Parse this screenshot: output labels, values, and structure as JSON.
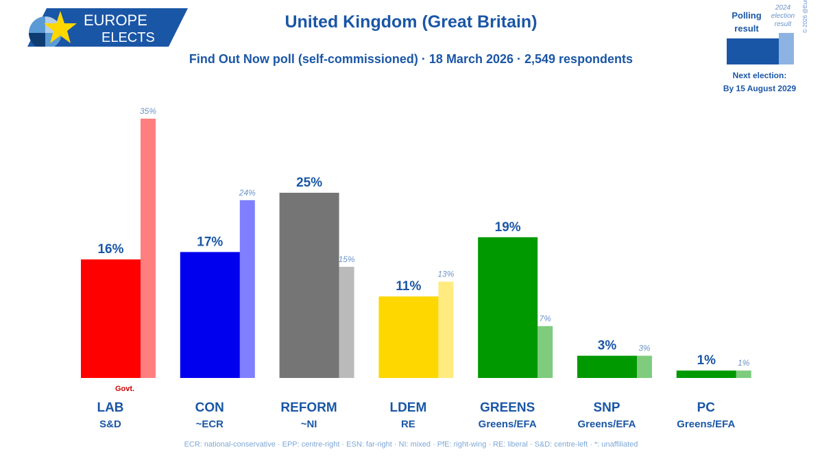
{
  "header": {
    "logo_line1": "EUROPE",
    "logo_line2": "ELECTS",
    "title": "United Kingdom (Great Britain)",
    "subtitle": "Find Out Now poll (self-commissioned) · 18 March 2026 · 2,549 respondents"
  },
  "legend": {
    "polling_label_1": "Polling",
    "polling_label_2": "result",
    "previous_label_1": "2024",
    "previous_label_2": "election",
    "previous_label_3": "result",
    "next_election_label": "Next election:",
    "next_election_date": "By 15 August 2029",
    "copyright": "© 2026 @EuropeElects"
  },
  "footnote": "ECR: national-conservative · EPP: centre-right · ESN: far-right · NI: mixed · PfE: right-wing · RE: liberal · S&D: centre-left · *: unaffiliated",
  "colors": {
    "brand": "#1a56a6",
    "muted": "#6a93c8"
  },
  "chart_data": {
    "type": "bar",
    "title": "United Kingdom (Great Britain)",
    "ylim": [
      0,
      35
    ],
    "categories": [
      "LAB",
      "CON",
      "REFORM",
      "LDEM",
      "GREENS",
      "SNP",
      "PC"
    ],
    "groups": [
      "S&D",
      "~ECR",
      "~NI",
      "RE",
      "Greens/EFA",
      "Greens/EFA",
      "Greens/EFA"
    ],
    "series": [
      {
        "name": "Polling result",
        "values": [
          16,
          17,
          25,
          11,
          19,
          3,
          1
        ]
      },
      {
        "name": "2024 election result",
        "values": [
          35,
          24,
          15,
          13,
          7,
          3,
          1
        ]
      }
    ],
    "colors": [
      "#ff0000",
      "#0000ee",
      "#757575",
      "#ffd700",
      "#009900",
      "#009900",
      "#009900"
    ],
    "light_colors": [
      "#ff7f7f",
      "#7f7fff",
      "#bababa",
      "#ffeb80",
      "#7fcc7f",
      "#7fcc7f",
      "#7fcc7f"
    ],
    "annotations": [
      {
        "category": "LAB",
        "text": "Govt."
      }
    ]
  }
}
